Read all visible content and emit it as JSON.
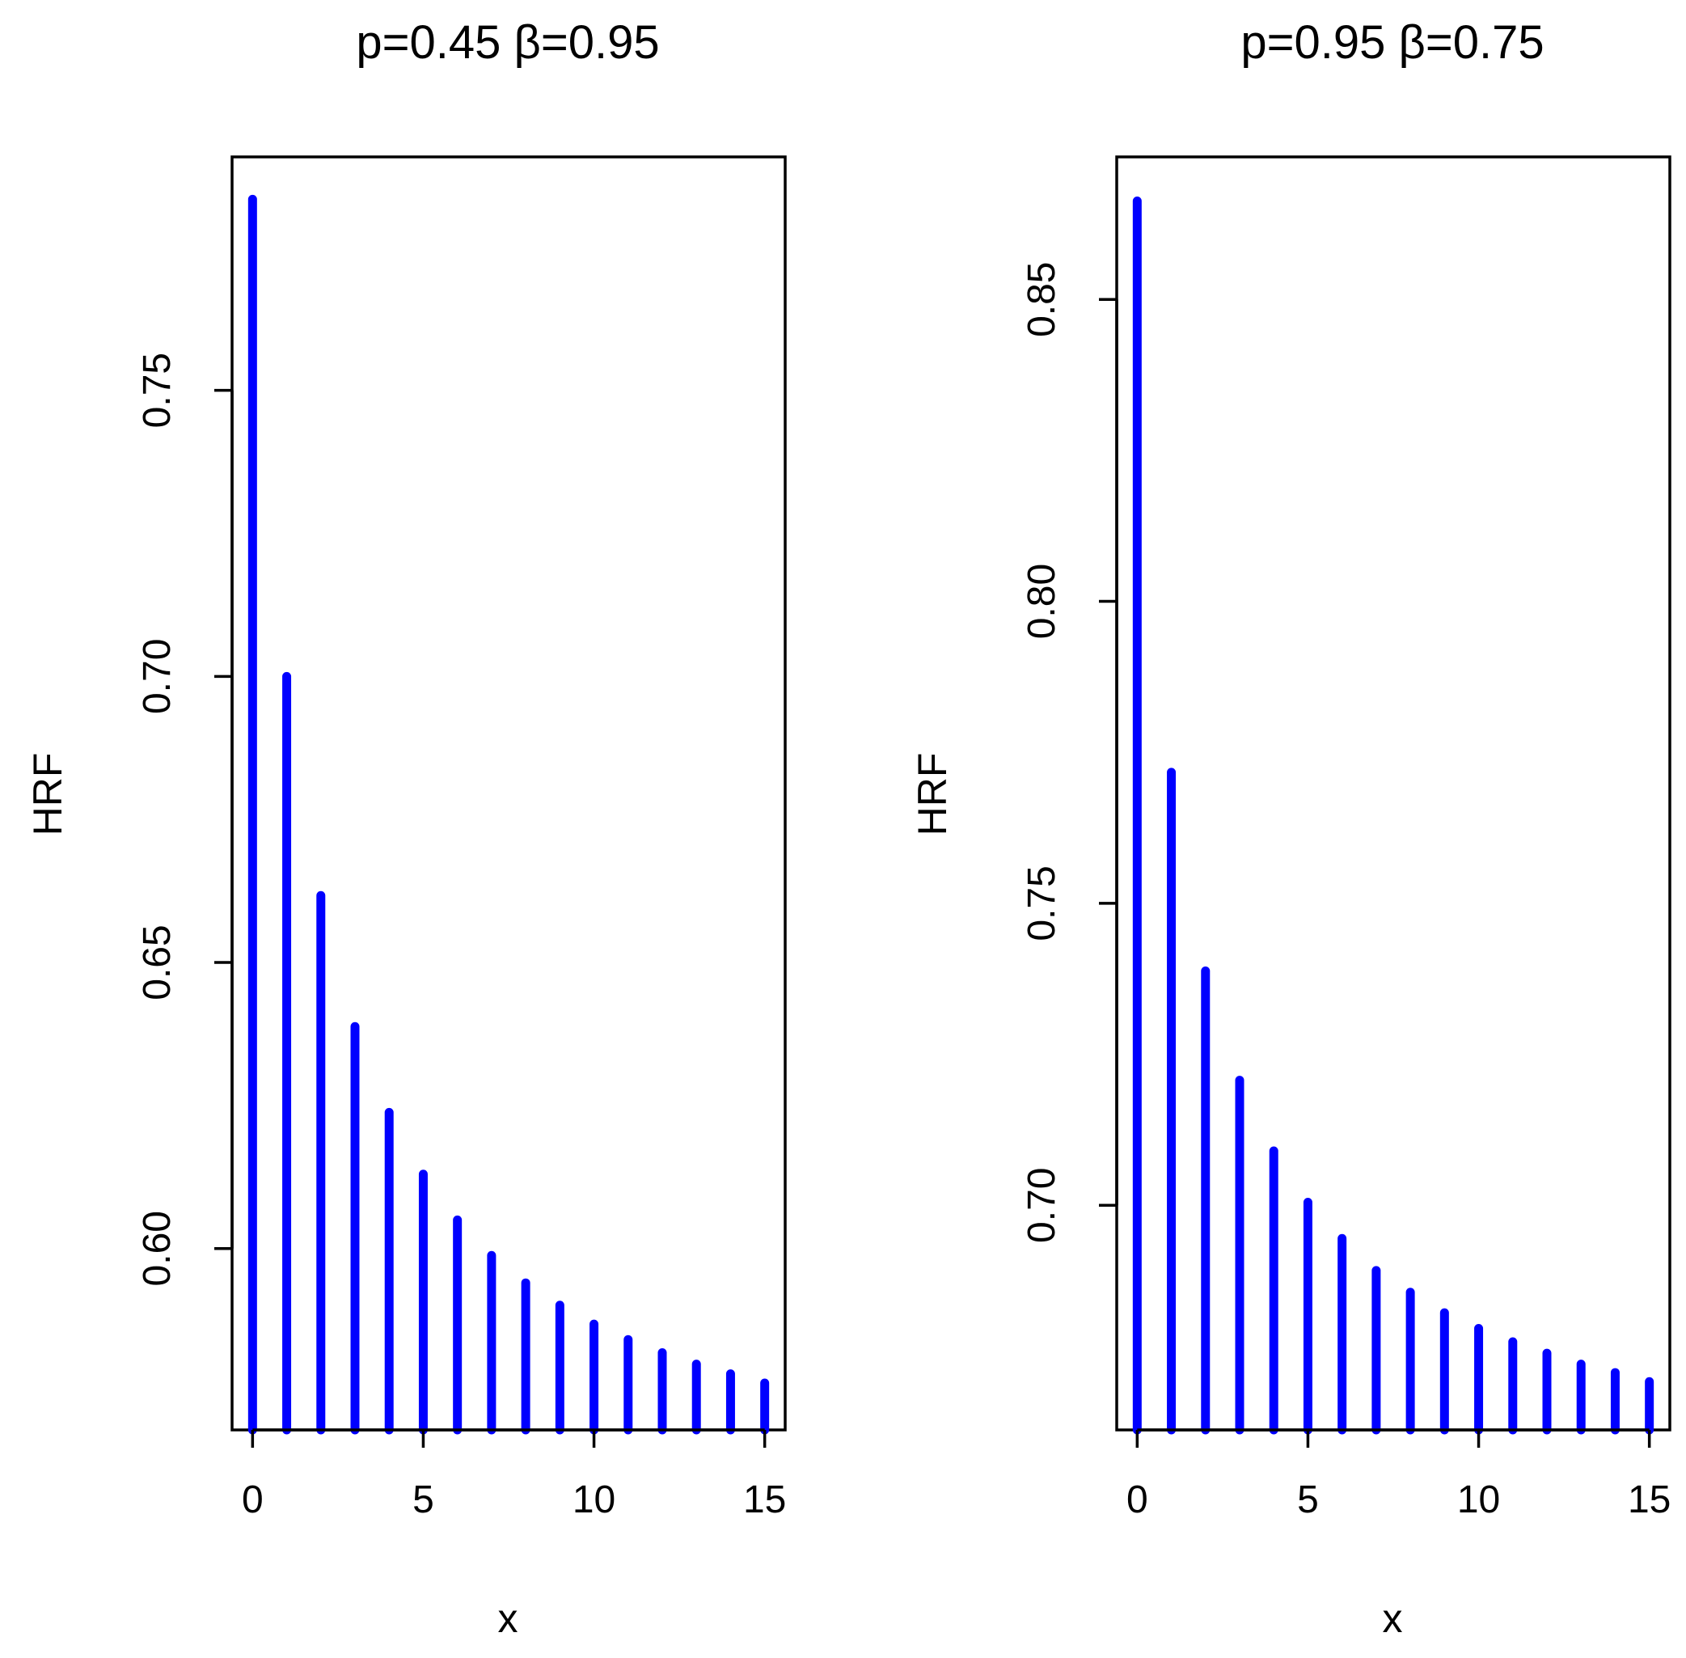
{
  "figure": {
    "description_free": true
  },
  "colors": {
    "spike": "#0000ff",
    "axis": "#000000",
    "background": "#ffffff"
  },
  "chart_data": [
    {
      "type": "bar",
      "subtype": "spike",
      "title": "p=0.45  β=0.95",
      "xlabel": "x",
      "ylabel": "HRF",
      "x": [
        0,
        1,
        2,
        3,
        4,
        5,
        6,
        7,
        8,
        9,
        10,
        11,
        12,
        13,
        14,
        15
      ],
      "values": [
        0.7834,
        0.7,
        0.6617,
        0.6388,
        0.6238,
        0.613,
        0.605,
        0.5988,
        0.594,
        0.5901,
        0.5868,
        0.5841,
        0.5818,
        0.5798,
        0.5781,
        0.5765
      ],
      "xlim": [
        -0.6,
        15.6
      ],
      "ylim": [
        0.5683,
        0.7908
      ],
      "xticks": [
        0,
        5,
        10,
        15
      ],
      "xtick_labels": [
        "0",
        "5",
        "10",
        "15"
      ],
      "yticks": [
        0.6,
        0.65,
        0.7,
        0.75
      ],
      "ytick_labels": [
        "0.60",
        "0.65",
        "0.70",
        "0.75"
      ],
      "grid": false
    },
    {
      "type": "bar",
      "subtype": "spike",
      "title": "p=0.95  β=0.75",
      "xlabel": "x",
      "ylabel": "HRF",
      "x": [
        0,
        1,
        2,
        3,
        4,
        5,
        6,
        7,
        8,
        9,
        10,
        11,
        12,
        13,
        14,
        15
      ],
      "values": [
        0.8663,
        0.7717,
        0.7388,
        0.7207,
        0.709,
        0.7005,
        0.6945,
        0.6892,
        0.6856,
        0.6822,
        0.6796,
        0.6774,
        0.6755,
        0.6737,
        0.6723,
        0.6708
      ],
      "xlim": [
        -0.6,
        15.6
      ],
      "ylim": [
        0.6628,
        0.8736
      ],
      "xticks": [
        0,
        5,
        10,
        15
      ],
      "xtick_labels": [
        "0",
        "5",
        "10",
        "15"
      ],
      "yticks": [
        0.7,
        0.75,
        0.8,
        0.85
      ],
      "ytick_labels": [
        "0.70",
        "0.75",
        "0.80",
        "0.85"
      ],
      "grid": false
    }
  ]
}
